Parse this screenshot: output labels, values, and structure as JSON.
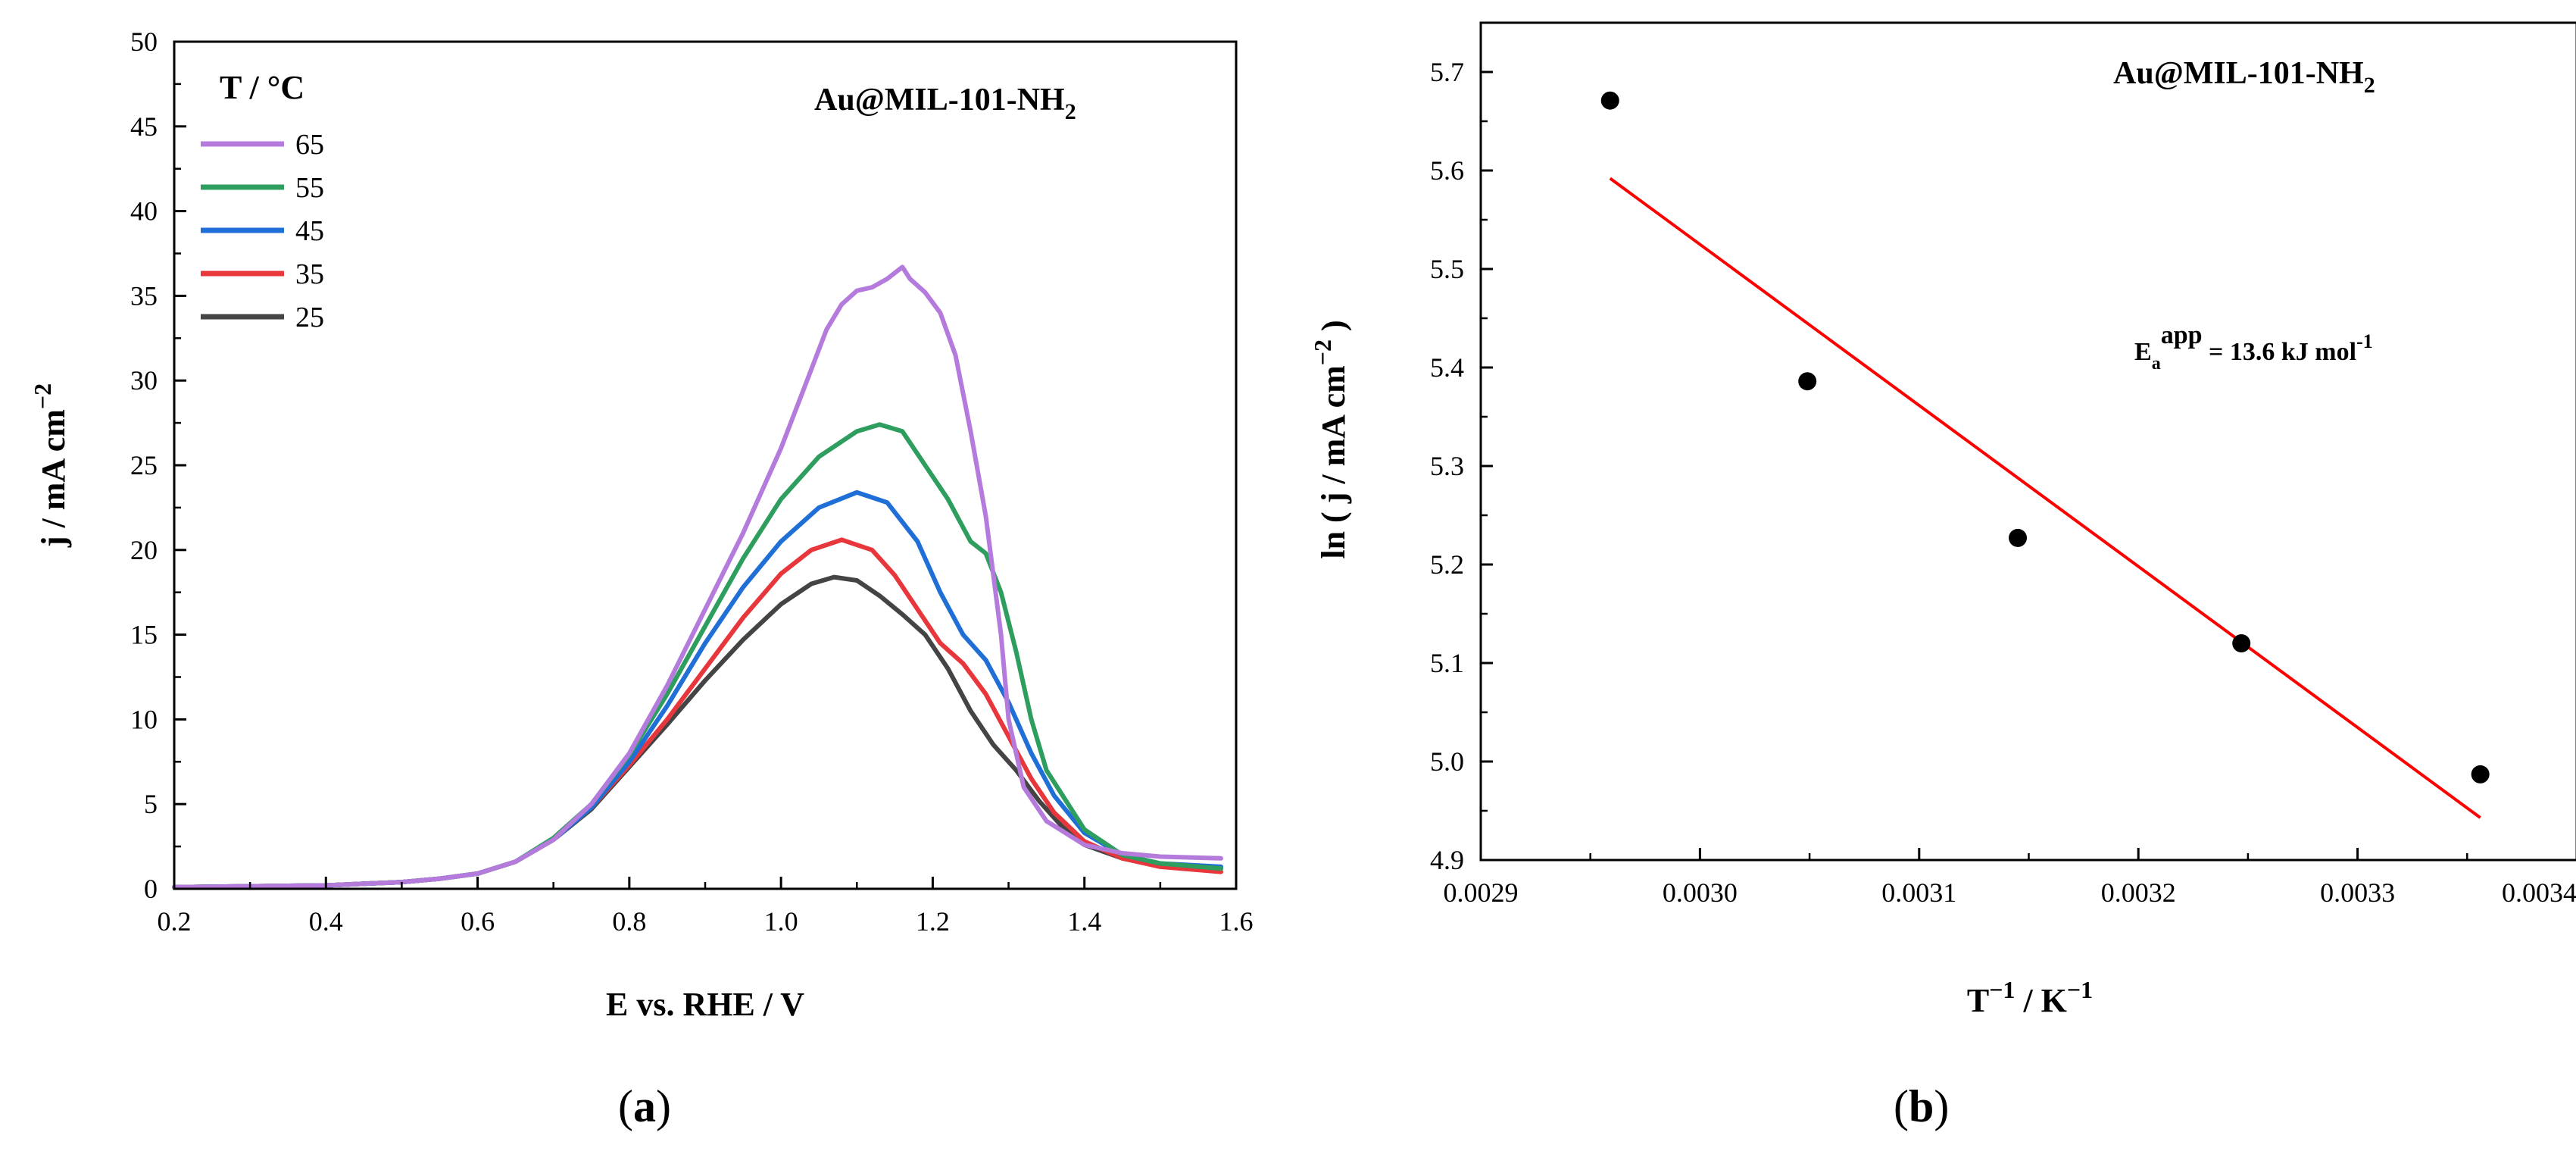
{
  "chart_data": [
    {
      "type": "line",
      "panel_label": "a",
      "title": "",
      "annotation": "Au@MIL-101-NH",
      "annotation_sub": "2",
      "xlabel": "E vs. RHE / V",
      "ylabel": "j / mA cm",
      "ylabel_sup": "−2",
      "xlim": [
        0.2,
        1.6
      ],
      "ylim": [
        0,
        50
      ],
      "xticks": [
        "0.2",
        "0.4",
        "0.6",
        "0.8",
        "1.0",
        "1.2",
        "1.4",
        "1.6"
      ],
      "yticks": [
        "0",
        "5",
        "10",
        "15",
        "20",
        "25",
        "30",
        "35",
        "40",
        "45",
        "50"
      ],
      "legend_title": "T / °C",
      "legend_position": "top-left",
      "series": [
        {
          "name": "65",
          "color": "#b57bdc",
          "x": [
            0.2,
            0.3,
            0.4,
            0.5,
            0.55,
            0.6,
            0.65,
            0.7,
            0.75,
            0.8,
            0.85,
            0.9,
            0.95,
            1.0,
            1.03,
            1.06,
            1.08,
            1.1,
            1.12,
            1.14,
            1.16,
            1.17,
            1.19,
            1.21,
            1.23,
            1.25,
            1.27,
            1.29,
            1.3,
            1.32,
            1.35,
            1.4,
            1.45,
            1.5,
            1.58
          ],
          "y": [
            0.1,
            0.15,
            0.2,
            0.4,
            0.6,
            0.9,
            1.6,
            2.9,
            5.0,
            8.0,
            12.0,
            16.5,
            21.0,
            26.0,
            29.5,
            33.0,
            34.5,
            35.3,
            35.5,
            36.0,
            36.7,
            36.0,
            35.2,
            34.0,
            31.5,
            27.0,
            22.0,
            15.0,
            10.0,
            6.0,
            4.0,
            2.6,
            2.1,
            1.9,
            1.8
          ]
        },
        {
          "name": "55",
          "color": "#2e9e5e",
          "x": [
            0.2,
            0.3,
            0.4,
            0.5,
            0.55,
            0.6,
            0.65,
            0.7,
            0.75,
            0.8,
            0.85,
            0.9,
            0.95,
            1.0,
            1.05,
            1.1,
            1.13,
            1.16,
            1.19,
            1.22,
            1.25,
            1.27,
            1.29,
            1.31,
            1.33,
            1.35,
            1.4,
            1.45,
            1.5,
            1.58
          ],
          "y": [
            0.1,
            0.15,
            0.2,
            0.4,
            0.6,
            0.9,
            1.6,
            3.0,
            5.0,
            7.9,
            11.5,
            15.5,
            19.5,
            23.0,
            25.5,
            27.0,
            27.4,
            27.0,
            25.0,
            23.0,
            20.5,
            19.8,
            17.5,
            14.0,
            10.0,
            7.0,
            3.5,
            2.0,
            1.5,
            1.2
          ]
        },
        {
          "name": "45",
          "color": "#1f6fd6",
          "x": [
            0.2,
            0.3,
            0.4,
            0.5,
            0.55,
            0.6,
            0.65,
            0.7,
            0.75,
            0.8,
            0.85,
            0.9,
            0.95,
            1.0,
            1.05,
            1.1,
            1.14,
            1.18,
            1.21,
            1.24,
            1.27,
            1.3,
            1.33,
            1.36,
            1.4,
            1.45,
            1.5,
            1.58
          ],
          "y": [
            0.1,
            0.15,
            0.2,
            0.4,
            0.6,
            0.9,
            1.6,
            2.9,
            4.8,
            7.5,
            10.8,
            14.5,
            17.8,
            20.5,
            22.5,
            23.4,
            22.8,
            20.5,
            17.5,
            15.0,
            13.5,
            11.0,
            8.0,
            5.5,
            3.3,
            2.0,
            1.5,
            1.3
          ]
        },
        {
          "name": "35",
          "color": "#e8373c",
          "x": [
            0.2,
            0.3,
            0.4,
            0.5,
            0.55,
            0.6,
            0.65,
            0.7,
            0.75,
            0.8,
            0.85,
            0.9,
            0.95,
            1.0,
            1.04,
            1.08,
            1.12,
            1.15,
            1.18,
            1.21,
            1.24,
            1.27,
            1.3,
            1.33,
            1.36,
            1.4,
            1.45,
            1.5,
            1.58
          ],
          "y": [
            0.1,
            0.15,
            0.2,
            0.4,
            0.6,
            0.9,
            1.6,
            2.9,
            4.8,
            7.3,
            10.0,
            13.0,
            16.0,
            18.6,
            20.0,
            20.6,
            20.0,
            18.5,
            16.5,
            14.5,
            13.3,
            11.5,
            9.0,
            6.5,
            4.5,
            2.8,
            1.8,
            1.3,
            1.0
          ]
        },
        {
          "name": "25",
          "color": "#444444",
          "x": [
            0.2,
            0.3,
            0.4,
            0.5,
            0.55,
            0.6,
            0.65,
            0.7,
            0.75,
            0.8,
            0.85,
            0.9,
            0.95,
            1.0,
            1.04,
            1.07,
            1.1,
            1.13,
            1.16,
            1.19,
            1.22,
            1.25,
            1.28,
            1.31,
            1.34,
            1.37,
            1.4,
            1.45,
            1.5,
            1.58
          ],
          "y": [
            0.1,
            0.15,
            0.2,
            0.4,
            0.6,
            0.9,
            1.6,
            2.9,
            4.7,
            7.2,
            9.7,
            12.3,
            14.7,
            16.8,
            18.0,
            18.4,
            18.2,
            17.3,
            16.2,
            15.0,
            13.0,
            10.5,
            8.5,
            7.0,
            5.2,
            3.7,
            2.6,
            1.8,
            1.4,
            1.2
          ]
        }
      ]
    },
    {
      "type": "scatter",
      "panel_label": "b",
      "title": "",
      "annotation": "Au@MIL-101-NH",
      "annotation_sub": "2",
      "equation_main": "E",
      "equation_sub": "a",
      "equation_sup": "app",
      "equation_rest": " = 13.6 kJ mol",
      "equation_rest_sup": "-1",
      "xlabel": "T",
      "xlabel_sup": "−1",
      "xlabel_rest": " / K",
      "xlabel_rest_sup": "−1",
      "ylabel": "ln ( j / mA cm",
      "ylabel_sup": "−2",
      "ylabel_rest": " )",
      "xlim": [
        0.0029,
        0.0034
      ],
      "ylim": [
        4.9,
        5.75
      ],
      "xticks": [
        "0.0029",
        "0.0030",
        "0.0031",
        "0.0032",
        "0.0033",
        "0.0034"
      ],
      "yticks": [
        "4.9",
        "5.0",
        "5.1",
        "5.2",
        "5.3",
        "5.4",
        "5.5",
        "5.6",
        "5.7"
      ],
      "points": {
        "x": [
          0.002959,
          0.003049,
          0.003145,
          0.003247,
          0.003356
        ],
        "y": [
          5.671,
          5.386,
          5.227,
          5.12,
          4.987
        ]
      },
      "fit_line": {
        "color": "#ff0000",
        "x": [
          0.002959,
          0.003356
        ],
        "y": [
          5.592,
          4.943
        ]
      }
    }
  ]
}
